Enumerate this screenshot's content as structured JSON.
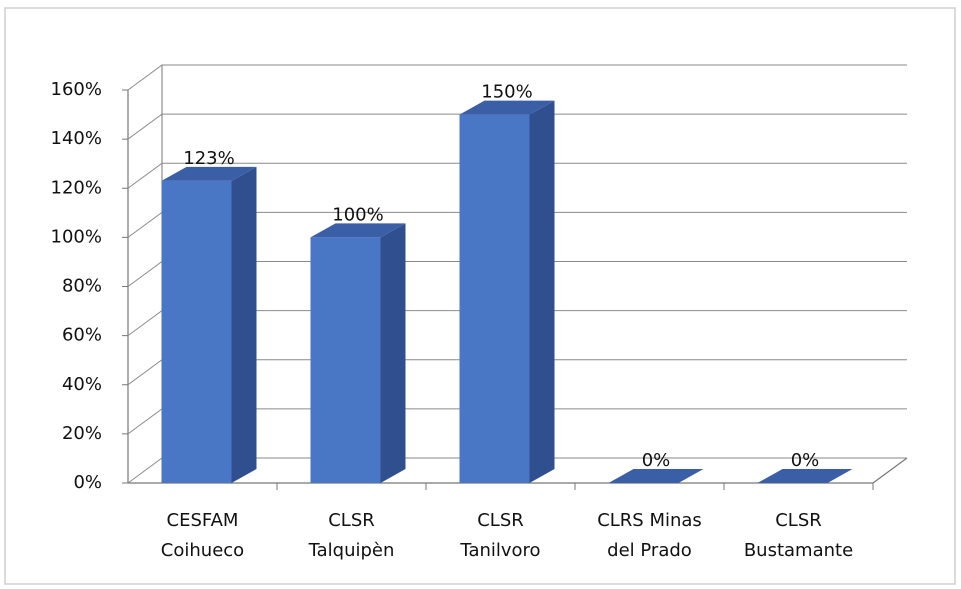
{
  "chart_data": {
    "type": "bar3d",
    "categories": [
      "CESFAM\nCoihueco",
      "CLSR\nTalquipèn",
      "CLSR\nTanilvoro",
      "CLRS Minas\ndel Prado",
      "CLSR\nBustamante"
    ],
    "values": [
      123,
      100,
      150,
      0,
      0
    ],
    "value_labels": [
      "123%",
      "100%",
      "150%",
      "0%",
      "0%"
    ],
    "color": "#4a76c6",
    "ylim": [
      0,
      160
    ],
    "yticks": [
      {
        "value": 0,
        "label": "0%"
      },
      {
        "value": 20,
        "label": "20%"
      },
      {
        "value": 40,
        "label": "40%"
      },
      {
        "value": 60,
        "label": "60%"
      },
      {
        "value": 80,
        "label": "80%"
      },
      {
        "value": 100,
        "label": "100%"
      },
      {
        "value": 120,
        "label": "120%"
      },
      {
        "value": 140,
        "label": "140%"
      },
      {
        "value": 160,
        "label": "160%"
      }
    ],
    "grid": true
  }
}
